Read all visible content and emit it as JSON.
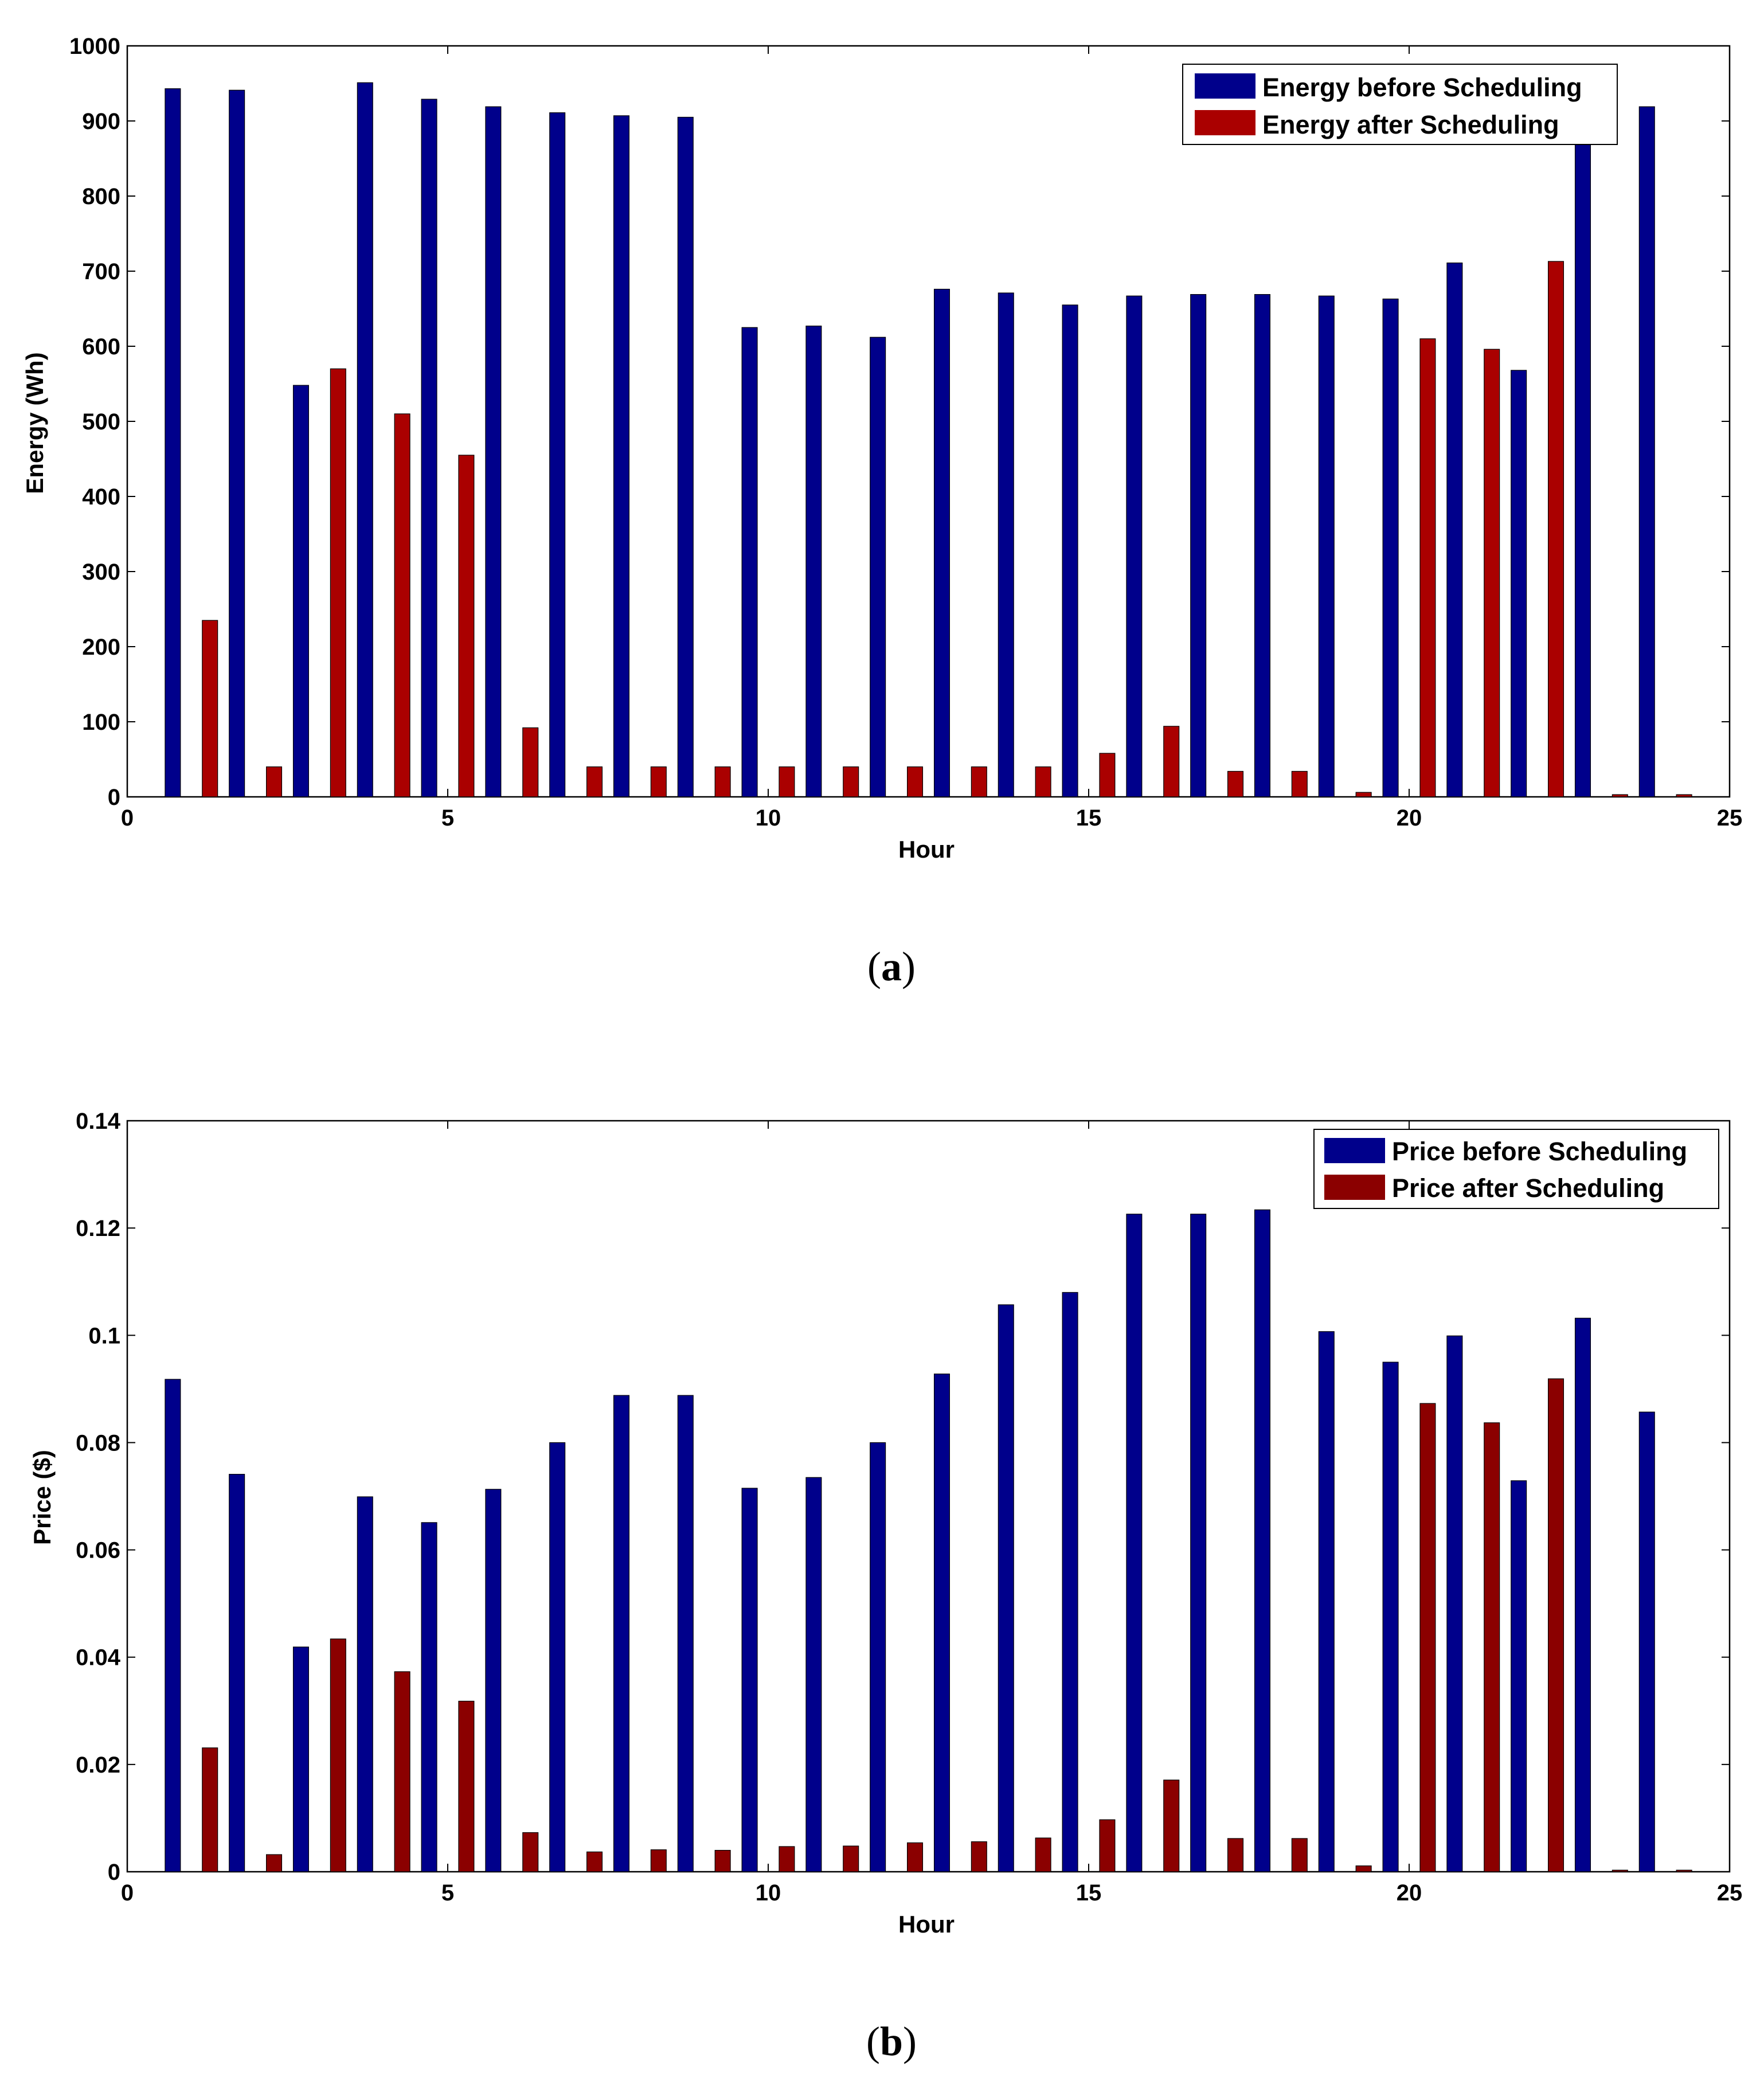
{
  "chart_data": [
    {
      "type": "bar",
      "caption": {
        "open": "(",
        "letter": "a",
        "close": ")"
      },
      "xlabel": "Hour",
      "ylabel": "Energy (Wh)",
      "xlim": [
        0,
        25
      ],
      "ylim": [
        0,
        1000
      ],
      "xticks": [
        "0",
        "5",
        "10",
        "15",
        "20",
        "25"
      ],
      "yticks": [
        "0",
        "100",
        "200",
        "300",
        "400",
        "500",
        "600",
        "700",
        "800",
        "900",
        "1000"
      ],
      "legend_position": "top-right",
      "x": [
        1,
        2,
        3,
        4,
        5,
        6,
        7,
        8,
        9,
        10,
        11,
        12,
        13,
        14,
        15,
        16,
        17,
        18,
        19,
        20,
        21,
        22,
        23,
        24
      ],
      "series": [
        {
          "name": "Energy before Scheduling",
          "color": "#00008B",
          "values": [
            943,
            941,
            548,
            951,
            929,
            919,
            911,
            907,
            905,
            625,
            627,
            612,
            676,
            671,
            655,
            667,
            669,
            669,
            667,
            663,
            711,
            568,
            870,
            919
          ]
        },
        {
          "name": "Energy after Scheduling",
          "color": "#AA0000",
          "values": [
            235,
            40,
            570,
            510,
            455,
            92,
            40,
            40,
            40,
            40,
            40,
            40,
            40,
            40,
            58,
            94,
            34,
            34,
            6,
            610,
            596,
            713,
            3,
            3
          ]
        }
      ]
    },
    {
      "type": "bar",
      "caption": {
        "open": "(",
        "letter": "b",
        "close": ")"
      },
      "xlabel": "Hour",
      "ylabel": "Price ($)",
      "xlim": [
        0,
        25
      ],
      "ylim": [
        0,
        0.14
      ],
      "xticks": [
        "0",
        "5",
        "10",
        "15",
        "20",
        "25"
      ],
      "yticks": [
        "0",
        "0.02",
        "0.04",
        "0.06",
        "0.08",
        "0.1",
        "0.12",
        "0.14"
      ],
      "legend_position": "top-right",
      "x": [
        1,
        2,
        3,
        4,
        5,
        6,
        7,
        8,
        9,
        10,
        11,
        12,
        13,
        14,
        15,
        16,
        17,
        18,
        19,
        20,
        21,
        22,
        23,
        24
      ],
      "series": [
        {
          "name": "Price before Scheduling",
          "color": "#00008B",
          "values": [
            0.0918,
            0.0741,
            0.0419,
            0.0699,
            0.0651,
            0.0713,
            0.08,
            0.0888,
            0.0888,
            0.0715,
            0.0735,
            0.08,
            0.0928,
            0.1057,
            0.108,
            0.1226,
            0.1226,
            0.1234,
            0.1007,
            0.095,
            0.0999,
            0.0729,
            0.1032,
            0.0857
          ]
        },
        {
          "name": "Price after Scheduling",
          "color": "#8B0000",
          "values": [
            0.0231,
            0.0032,
            0.0434,
            0.0373,
            0.0318,
            0.0073,
            0.0037,
            0.0041,
            0.004,
            0.0047,
            0.0048,
            0.0054,
            0.0056,
            0.0063,
            0.0097,
            0.0171,
            0.0062,
            0.0062,
            0.0011,
            0.0873,
            0.0837,
            0.0919,
            0.0003,
            0.0003
          ]
        }
      ]
    }
  ]
}
